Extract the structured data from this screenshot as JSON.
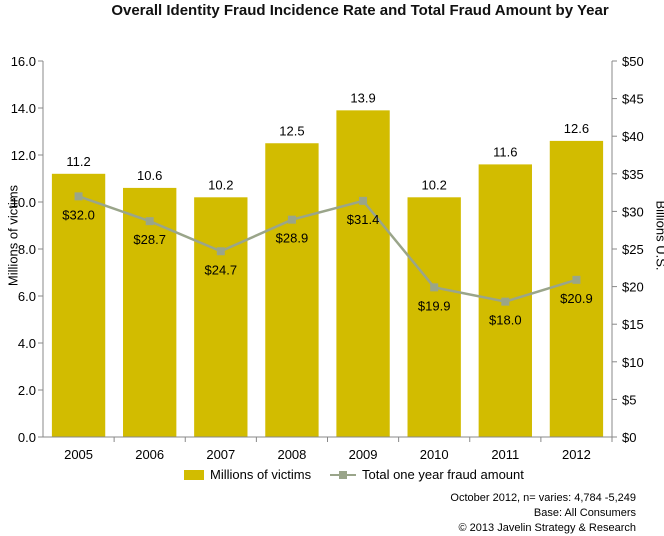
{
  "colors": {
    "bar": "#D2BC00",
    "line": "#9AA58A",
    "axis": "#888888",
    "text": "#000000"
  },
  "legend": {
    "bar_label": "Millions of victims",
    "line_label": "Total one year fraud amount"
  },
  "footer": [
    "October 2012, n= varies: 4,784 -5,249",
    "Base: All Consumers",
    "© 2013 Javelin Strategy & Research"
  ],
  "chart_data": {
    "type": "bar",
    "title": "Overall Identity Fraud Incidence Rate and Total Fraud Amount by Year",
    "ylabel": "Millions of victims",
    "y2label": "Billions U.S.",
    "categories": [
      "2005",
      "2006",
      "2007",
      "2008",
      "2009",
      "2010",
      "2011",
      "2012"
    ],
    "ylim": [
      0,
      16
    ],
    "yticks": [
      "0.0",
      "2.0",
      "4.0",
      "6.0",
      "8.0",
      "10.0",
      "12.0",
      "14.0",
      "16.0"
    ],
    "y2lim": [
      0,
      50
    ],
    "y2ticks": [
      "$0",
      "$5",
      "$10",
      "$15",
      "$20",
      "$25",
      "$30",
      "$35",
      "$40",
      "$45",
      "$50"
    ],
    "series": [
      {
        "name": "Millions of victims",
        "type": "bar",
        "axis": "left",
        "values": [
          11.2,
          10.6,
          10.2,
          12.5,
          13.9,
          10.2,
          11.6,
          12.6
        ],
        "labels": [
          "11.2",
          "10.6",
          "10.2",
          "12.5",
          "13.9",
          "10.2",
          "11.6",
          "12.6"
        ]
      },
      {
        "name": "Total one year fraud amount",
        "type": "line",
        "axis": "right",
        "values": [
          32.0,
          28.7,
          24.7,
          28.9,
          31.4,
          19.9,
          18.0,
          20.9
        ],
        "labels": [
          "$32.0",
          "$28.7",
          "$24.7",
          "$28.9",
          "$31.4",
          "$19.9",
          "$18.0",
          "$20.9"
        ]
      }
    ],
    "grid": false,
    "legend_position": "bottom"
  }
}
